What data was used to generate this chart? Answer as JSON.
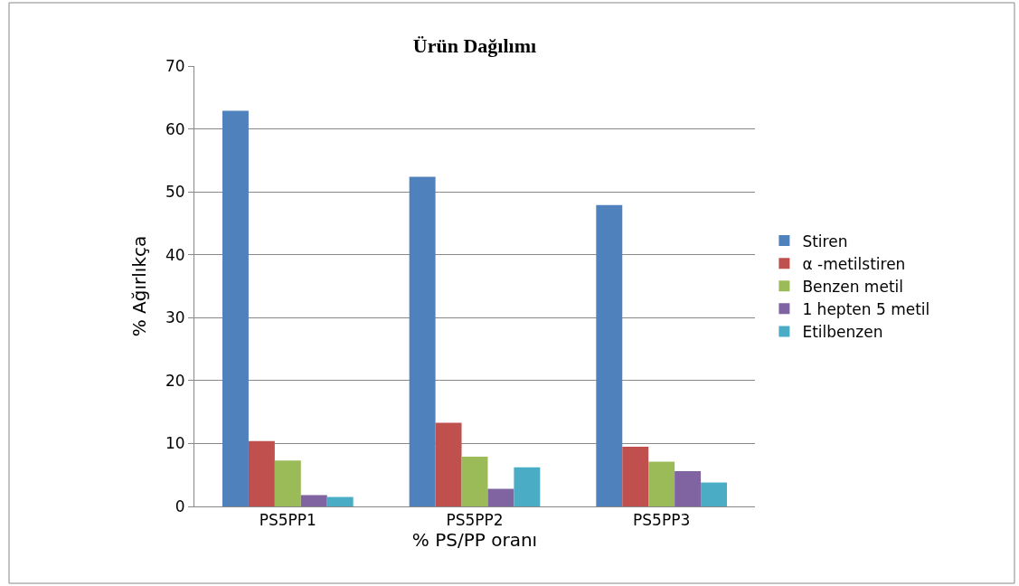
{
  "chart_data": {
    "type": "bar",
    "title": "Ürün Dağılımı",
    "xlabel": "% PS/PP oranı",
    "ylabel": "% Ağırlıkça",
    "categories": [
      "PS5PP1",
      "PS5PP2",
      "PS5PP3"
    ],
    "series": [
      {
        "name": "Stiren",
        "color": "#4f81bd",
        "values": [
          62.9,
          52.4,
          47.9
        ]
      },
      {
        "name": "α -metilstiren",
        "color": "#c0504d",
        "values": [
          10.4,
          13.3,
          9.5
        ]
      },
      {
        "name": "Benzen metil",
        "color": "#9bbb59",
        "values": [
          7.3,
          7.9,
          7.1
        ]
      },
      {
        "name": "1 hepten 5 metil",
        "color": "#8064a2",
        "values": [
          1.8,
          2.8,
          5.6
        ]
      },
      {
        "name": "Etilbenzen",
        "color": "#4bacc6",
        "values": [
          1.5,
          6.2,
          3.8
        ]
      }
    ],
    "ylim": [
      0,
      70
    ],
    "yticks": [
      0,
      10,
      20,
      30,
      40,
      50,
      60,
      70
    ],
    "grid": "y",
    "legend": "right"
  }
}
